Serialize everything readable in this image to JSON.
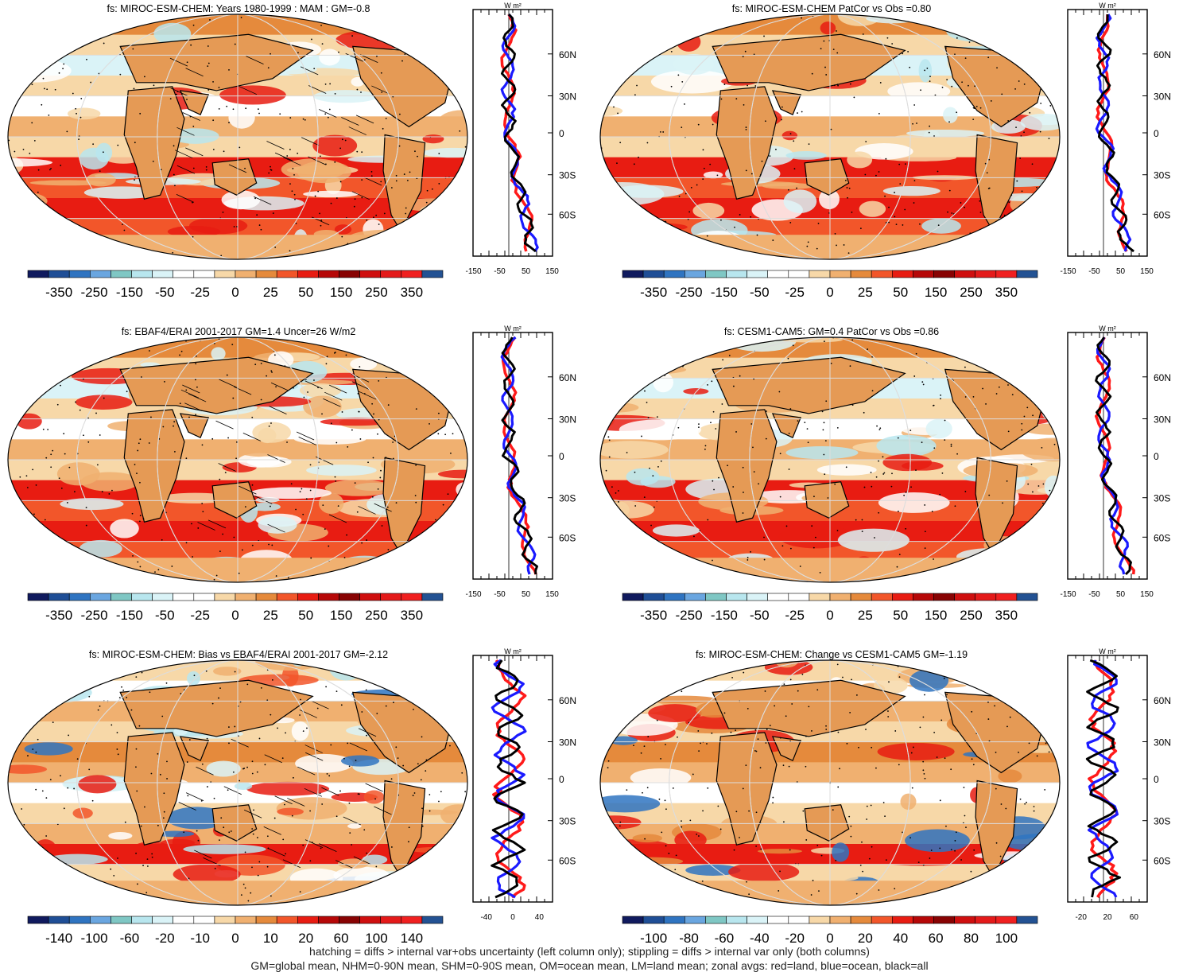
{
  "panels": [
    {
      "title": "fs: MIROC-ESM-CHEM: Years 1980-1999 : MAM : GM=-0.8",
      "colorbar_labels": [
        "-350",
        "-250",
        "-150",
        "-50",
        "-25",
        "0",
        "25",
        "50",
        "150",
        "250",
        "350"
      ],
      "zonal_ticks": [
        "-150",
        "-50",
        "50",
        "150"
      ]
    },
    {
      "title": "fs: MIROC-ESM-CHEM PatCor vs Obs =0.80",
      "colorbar_labels": [
        "-350",
        "-250",
        "-150",
        "-50",
        "-25",
        "0",
        "25",
        "50",
        "150",
        "250",
        "350"
      ],
      "zonal_ticks": [
        "-150",
        "-50",
        "50",
        "150"
      ]
    },
    {
      "title": "fs: EBAF4/ERAI 2001-2017 GM=1.4 Uncer=26 W/m2",
      "colorbar_labels": [
        "-350",
        "-250",
        "-150",
        "-50",
        "-25",
        "0",
        "25",
        "50",
        "150",
        "250",
        "350"
      ],
      "zonal_ticks": [
        "-150",
        "-50",
        "50",
        "150"
      ]
    },
    {
      "title": "fs: CESM1-CAM5: GM=0.4 PatCor vs Obs =0.86",
      "colorbar_labels": [
        "-350",
        "-250",
        "-150",
        "-50",
        "-25",
        "0",
        "25",
        "50",
        "150",
        "250",
        "350"
      ],
      "zonal_ticks": [
        "-150",
        "-50",
        "50",
        "150"
      ]
    },
    {
      "title": "fs: MIROC-ESM-CHEM: Bias vs EBAF4/ERAI 2001-2017 GM=-2.12",
      "colorbar_labels": [
        "-140",
        "-100",
        "-60",
        "-20",
        "-10",
        "0",
        "10",
        "20",
        "60",
        "100",
        "140"
      ],
      "zonal_ticks": [
        "-40",
        "0",
        "40"
      ]
    },
    {
      "title": "fs: MIROC-ESM-CHEM: Change vs CESM1-CAM5 GM=-1.19",
      "colorbar_labels": [
        "-100",
        "-80",
        "-60",
        "-40",
        "-20",
        "0",
        "20",
        "40",
        "60",
        "80",
        "100"
      ],
      "zonal_ticks": [
        "-20",
        "20",
        "60"
      ]
    }
  ],
  "zonal_unit": "W m²",
  "lat_labels": [
    "60N",
    "30N",
    "0",
    "30S",
    "60S"
  ],
  "colorbar_colors": [
    "#101a5e",
    "#1f4e96",
    "#2f74c1",
    "#6aa6e0",
    "#7fc7c4",
    "#b8e6ee",
    "#daf3f7",
    "#ffffff",
    "#ffffff",
    "#f7d8a8",
    "#f0b070",
    "#e58a3c",
    "#f2562a",
    "#e81c12",
    "#b60808",
    "#880303",
    "#cf0f0f",
    "#e41a1a",
    "#f02020",
    "#235293"
  ],
  "chart_data": {
    "type": "heatmap",
    "description_series": [
      "land",
      "ocean",
      "all"
    ],
    "series_colors": {
      "land": "#ff1a1a",
      "ocean": "#1a1aff",
      "all": "#000000"
    },
    "zonal_lat_ticks": [
      60,
      30,
      0,
      -30,
      -60
    ]
  },
  "footnotes": [
    "hatching = diffs > internal var+obs uncertainty (left column only); stippling = diffs > internal var only (both columns)",
    "GM=global mean, NHM=0-90N mean, SHM=0-90S mean, OM=ocean mean, LM=land mean; zonal avgs: red=land, blue=ocean, black=all"
  ]
}
